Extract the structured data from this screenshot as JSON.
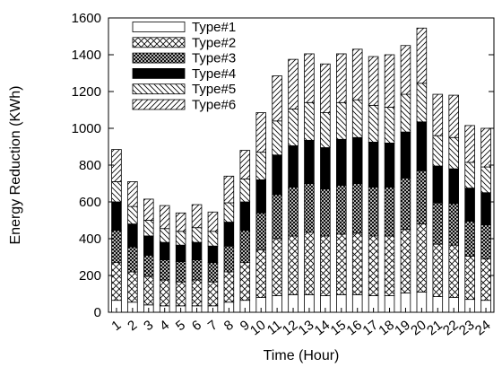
{
  "chart_data": {
    "type": "bar",
    "stacked": true,
    "title": "",
    "xlabel": "Time (Hour)",
    "ylabel": "Energy Reduction (KWh)",
    "ylim": [
      0,
      1600
    ],
    "yticks": [
      0,
      200,
      400,
      600,
      800,
      1000,
      1200,
      1400,
      1600
    ],
    "grid": false,
    "legend_position": "top-left",
    "categories": [
      "1",
      "2",
      "3",
      "4",
      "5",
      "6",
      "7",
      "8",
      "9",
      "10",
      "11",
      "12",
      "13",
      "14",
      "15",
      "16",
      "17",
      "18",
      "19",
      "20",
      "21",
      "22",
      "23",
      "24"
    ],
    "series": [
      {
        "name": "Type#1",
        "pattern": "blank",
        "values": [
          65,
          55,
          40,
          35,
          35,
          35,
          35,
          55,
          65,
          80,
          90,
          95,
          95,
          90,
          95,
          95,
          90,
          90,
          105,
          110,
          85,
          80,
          70,
          65
        ]
      },
      {
        "name": "Type#2",
        "pattern": "crosshatch",
        "values": [
          205,
          165,
          155,
          140,
          130,
          140,
          130,
          165,
          205,
          260,
          310,
          320,
          340,
          325,
          330,
          335,
          325,
          325,
          345,
          370,
          285,
          285,
          235,
          225
        ]
      },
      {
        "name": "Type#3",
        "pattern": "dense-crosshatch",
        "values": [
          175,
          135,
          115,
          110,
          110,
          110,
          105,
          140,
          175,
          200,
          240,
          265,
          265,
          255,
          265,
          270,
          265,
          265,
          280,
          290,
          225,
          225,
          190,
          185
        ]
      },
      {
        "name": "Type#4",
        "pattern": "solid",
        "values": [
          155,
          125,
          105,
          95,
          90,
          95,
          90,
          130,
          155,
          180,
          215,
          225,
          235,
          225,
          250,
          250,
          245,
          240,
          250,
          265,
          200,
          190,
          180,
          175
        ]
      },
      {
        "name": "Type#5",
        "pattern": "back-diagonal",
        "values": [
          110,
          95,
          85,
          75,
          75,
          80,
          80,
          105,
          125,
          150,
          185,
          200,
          205,
          190,
          200,
          205,
          200,
          195,
          205,
          210,
          165,
          170,
          140,
          140
        ]
      },
      {
        "name": "Type#6",
        "pattern": "forward-diagonal",
        "values": [
          175,
          135,
          115,
          125,
          100,
          125,
          105,
          145,
          155,
          215,
          245,
          270,
          265,
          265,
          265,
          275,
          265,
          285,
          265,
          300,
          225,
          230,
          200,
          210
        ]
      }
    ]
  }
}
